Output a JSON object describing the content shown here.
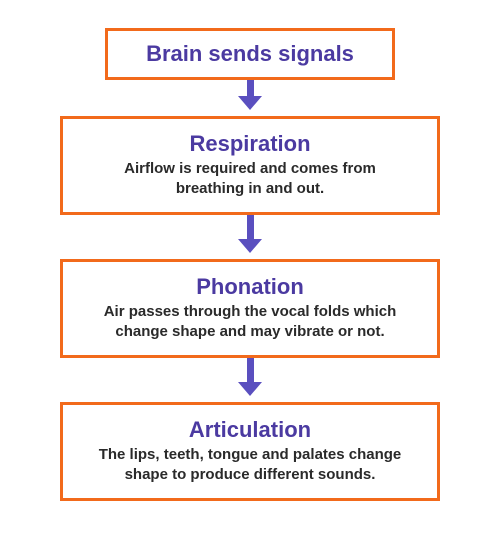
{
  "colors": {
    "border": "#f26a1b",
    "title": "#4b3aa1",
    "desc": "#2a2a2a",
    "arrow": "#5a4fbf",
    "background": "#ffffff"
  },
  "styling": {
    "border_width": 3,
    "title_fontsize": 22,
    "desc_fontsize": 15,
    "arrow_stem_height_first": 16,
    "arrow_stem_height": 24,
    "arrow_gap_after": 6
  },
  "steps": [
    {
      "title": "Brain sends signals",
      "desc": null,
      "size": "small"
    },
    {
      "title": "Respiration",
      "desc": "Airflow is required and comes from breathing in and out.",
      "size": "large"
    },
    {
      "title": "Phonation",
      "desc": "Air passes through the vocal folds which change shape and may vibrate or not.",
      "size": "large"
    },
    {
      "title": "Articulation",
      "desc": "The lips, teeth, tongue and palates change shape to produce different sounds.",
      "size": "large"
    }
  ]
}
